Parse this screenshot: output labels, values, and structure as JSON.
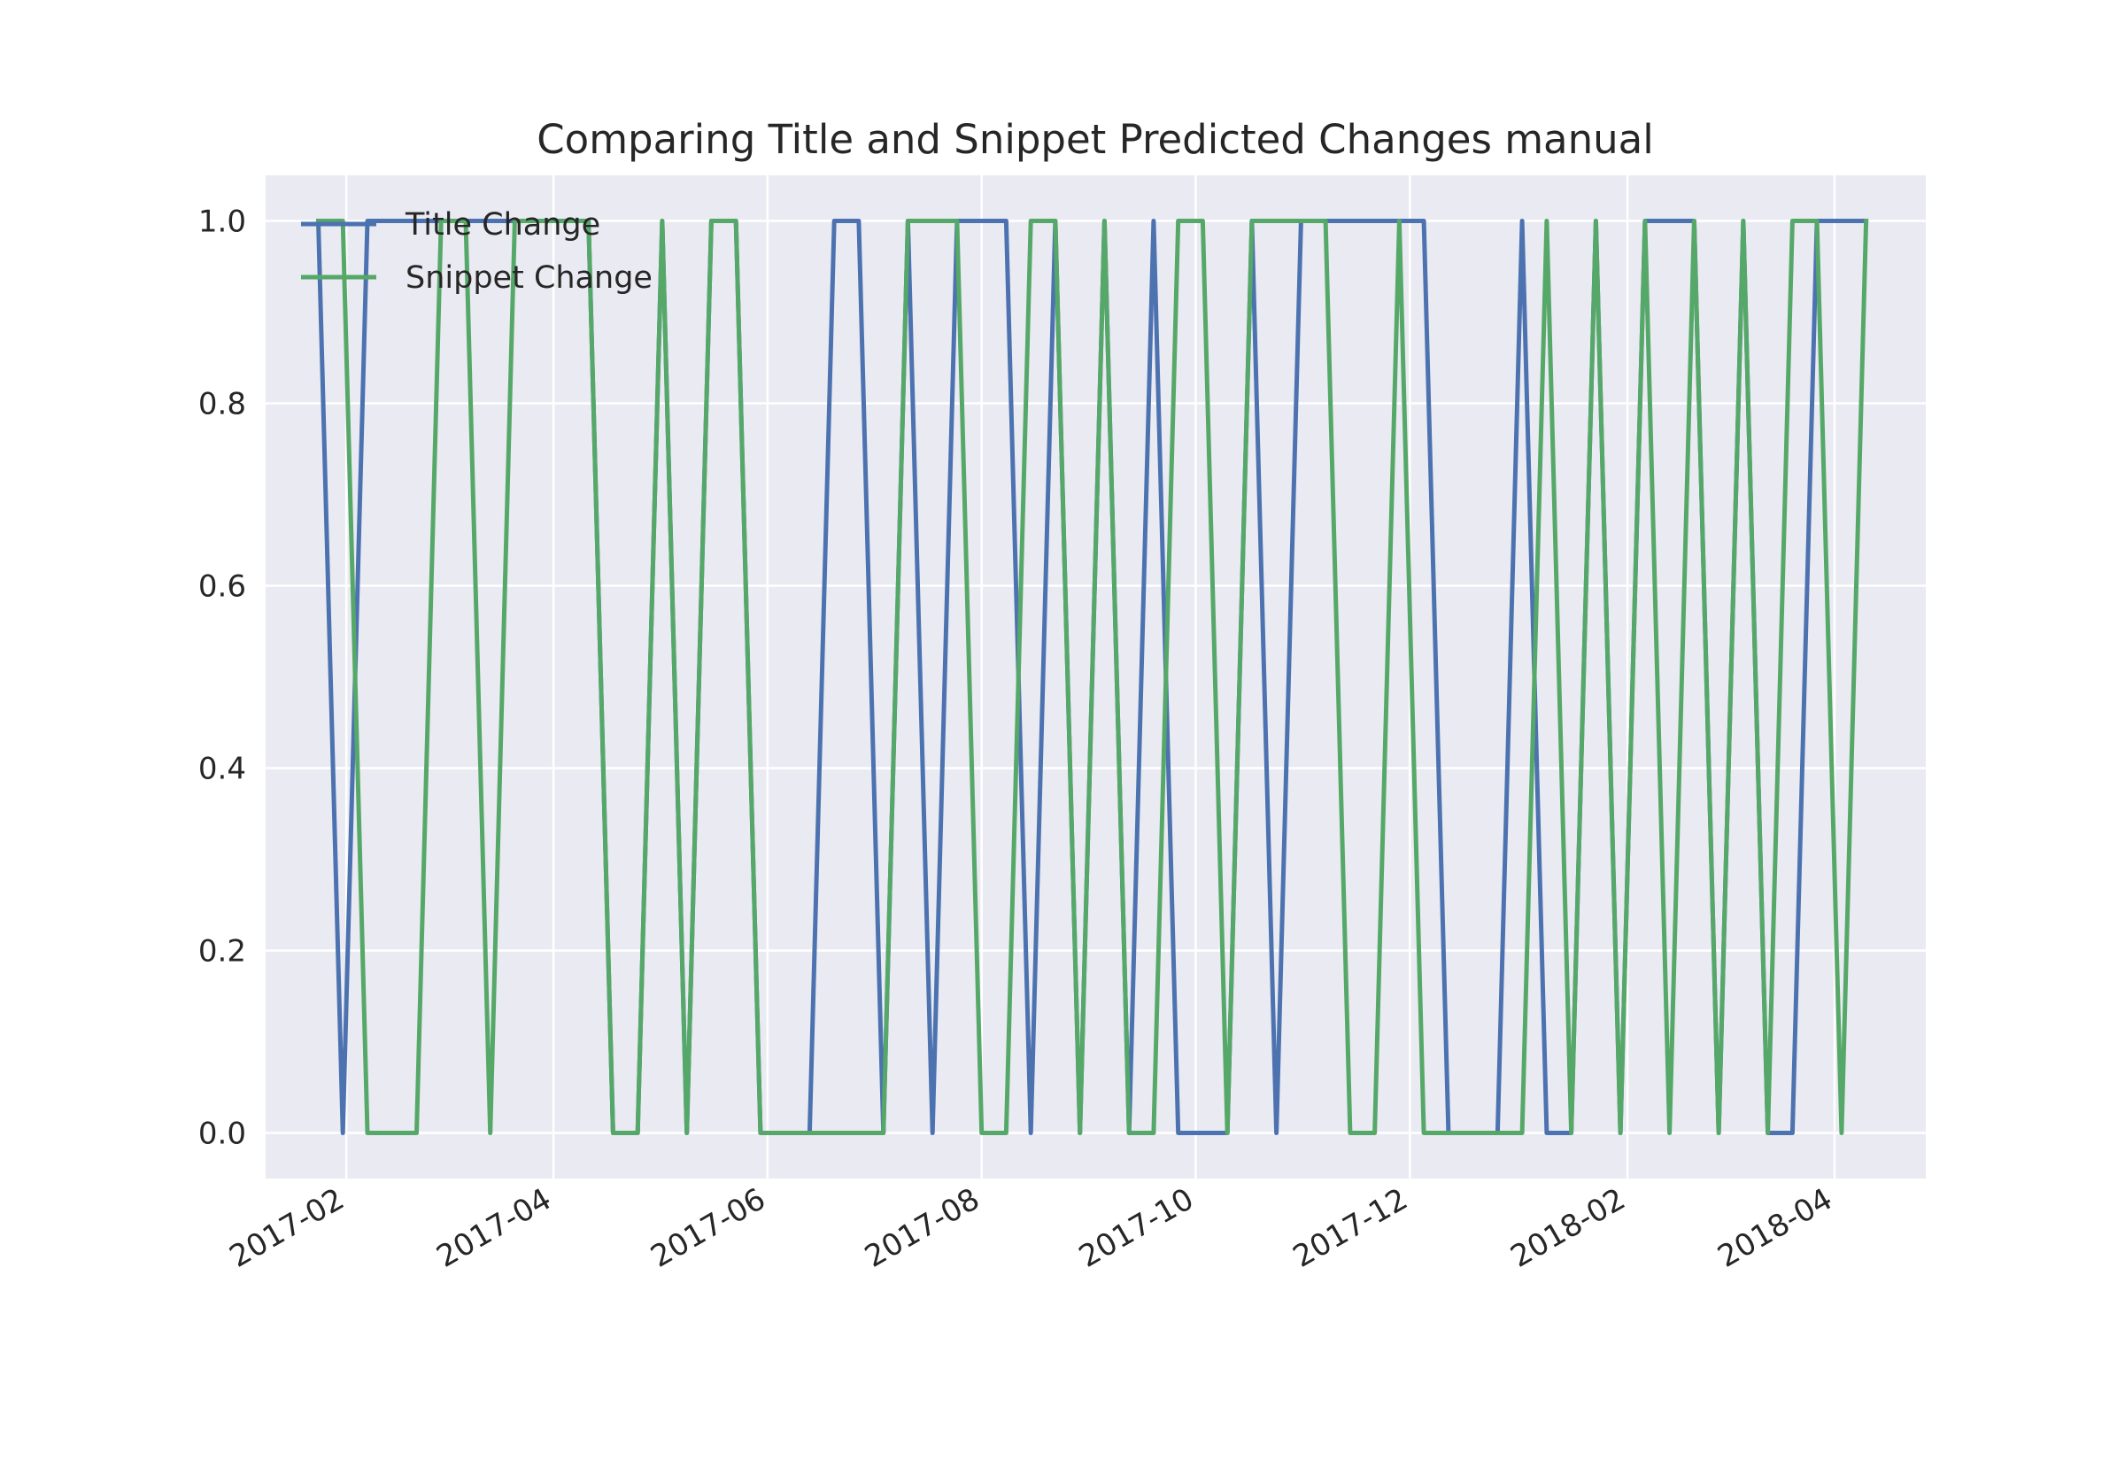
{
  "chart_data": {
    "type": "line",
    "title": "Comparing Title and Snippet Predicted Changes manual",
    "xlabel": "",
    "ylabel": "",
    "ylim": [
      -0.05,
      1.05
    ],
    "xlim": [
      "2017-01-09",
      "2018-04-27"
    ],
    "grid": true,
    "legend_position": "top-left",
    "yticks": [
      0.0,
      0.2,
      0.4,
      0.6,
      0.8,
      1.0
    ],
    "ytick_labels": [
      "0.0",
      "0.2",
      "0.4",
      "0.6",
      "0.8",
      "1.0"
    ],
    "xticks": [
      "2017-02-01",
      "2017-04-01",
      "2017-06-01",
      "2017-08-01",
      "2017-10-01",
      "2017-12-01",
      "2018-02-01",
      "2018-04-01"
    ],
    "xtick_labels": [
      "2017-02",
      "2017-04",
      "2017-06",
      "2017-08",
      "2017-10",
      "2017-12",
      "2018-02",
      "2018-04"
    ],
    "x": [
      "2017-01-24",
      "2017-01-31",
      "2017-02-07",
      "2017-02-14",
      "2017-02-21",
      "2017-02-28",
      "2017-03-07",
      "2017-03-14",
      "2017-03-21",
      "2017-03-28",
      "2017-04-04",
      "2017-04-11",
      "2017-04-18",
      "2017-04-25",
      "2017-05-02",
      "2017-05-09",
      "2017-05-16",
      "2017-05-23",
      "2017-05-30",
      "2017-06-06",
      "2017-06-13",
      "2017-06-20",
      "2017-06-27",
      "2017-07-04",
      "2017-07-11",
      "2017-07-18",
      "2017-07-25",
      "2017-08-01",
      "2017-08-08",
      "2017-08-15",
      "2017-08-22",
      "2017-08-29",
      "2017-09-05",
      "2017-09-12",
      "2017-09-19",
      "2017-09-26",
      "2017-10-03",
      "2017-10-10",
      "2017-10-17",
      "2017-10-24",
      "2017-10-31",
      "2017-11-07",
      "2017-11-14",
      "2017-11-21",
      "2017-11-28",
      "2017-12-05",
      "2017-12-12",
      "2017-12-19",
      "2017-12-26",
      "2018-01-02",
      "2018-01-09",
      "2018-01-16",
      "2018-01-23",
      "2018-01-30",
      "2018-02-06",
      "2018-02-13",
      "2018-02-20",
      "2018-02-27",
      "2018-03-06",
      "2018-03-13",
      "2018-03-20",
      "2018-03-27",
      "2018-04-03",
      "2018-04-10"
    ],
    "series": [
      {
        "name": "Title Change",
        "color": "#4c72b0",
        "values": [
          1,
          0,
          1,
          1,
          1,
          1,
          1,
          1,
          1,
          1,
          1,
          1,
          0,
          0,
          1,
          0,
          1,
          1,
          0,
          0,
          0,
          1,
          1,
          0,
          1,
          0,
          1,
          1,
          1,
          0,
          1,
          0,
          1,
          0,
          1,
          0,
          0,
          0,
          1,
          0,
          1,
          1,
          1,
          1,
          1,
          1,
          0,
          0,
          0,
          1,
          0,
          0,
          1,
          0,
          1,
          1,
          1,
          0,
          1,
          0,
          0,
          1,
          1,
          1
        ]
      },
      {
        "name": "Snippet Change",
        "color": "#55a868",
        "values": [
          1,
          1,
          0,
          0,
          0,
          1,
          1,
          0,
          1,
          1,
          1,
          1,
          0,
          0,
          1,
          0,
          1,
          1,
          0,
          0,
          0,
          0,
          0,
          0,
          1,
          1,
          1,
          0,
          0,
          1,
          1,
          0,
          1,
          0,
          0,
          1,
          1,
          0,
          1,
          1,
          1,
          1,
          0,
          0,
          1,
          0,
          0,
          0,
          0,
          0,
          1,
          0,
          1,
          0,
          1,
          0,
          1,
          0,
          1,
          0,
          1,
          1,
          0,
          1
        ]
      }
    ]
  },
  "colors": {
    "plot_background": "#eaeaf2",
    "grid": "#ffffff",
    "text": "#262626"
  }
}
